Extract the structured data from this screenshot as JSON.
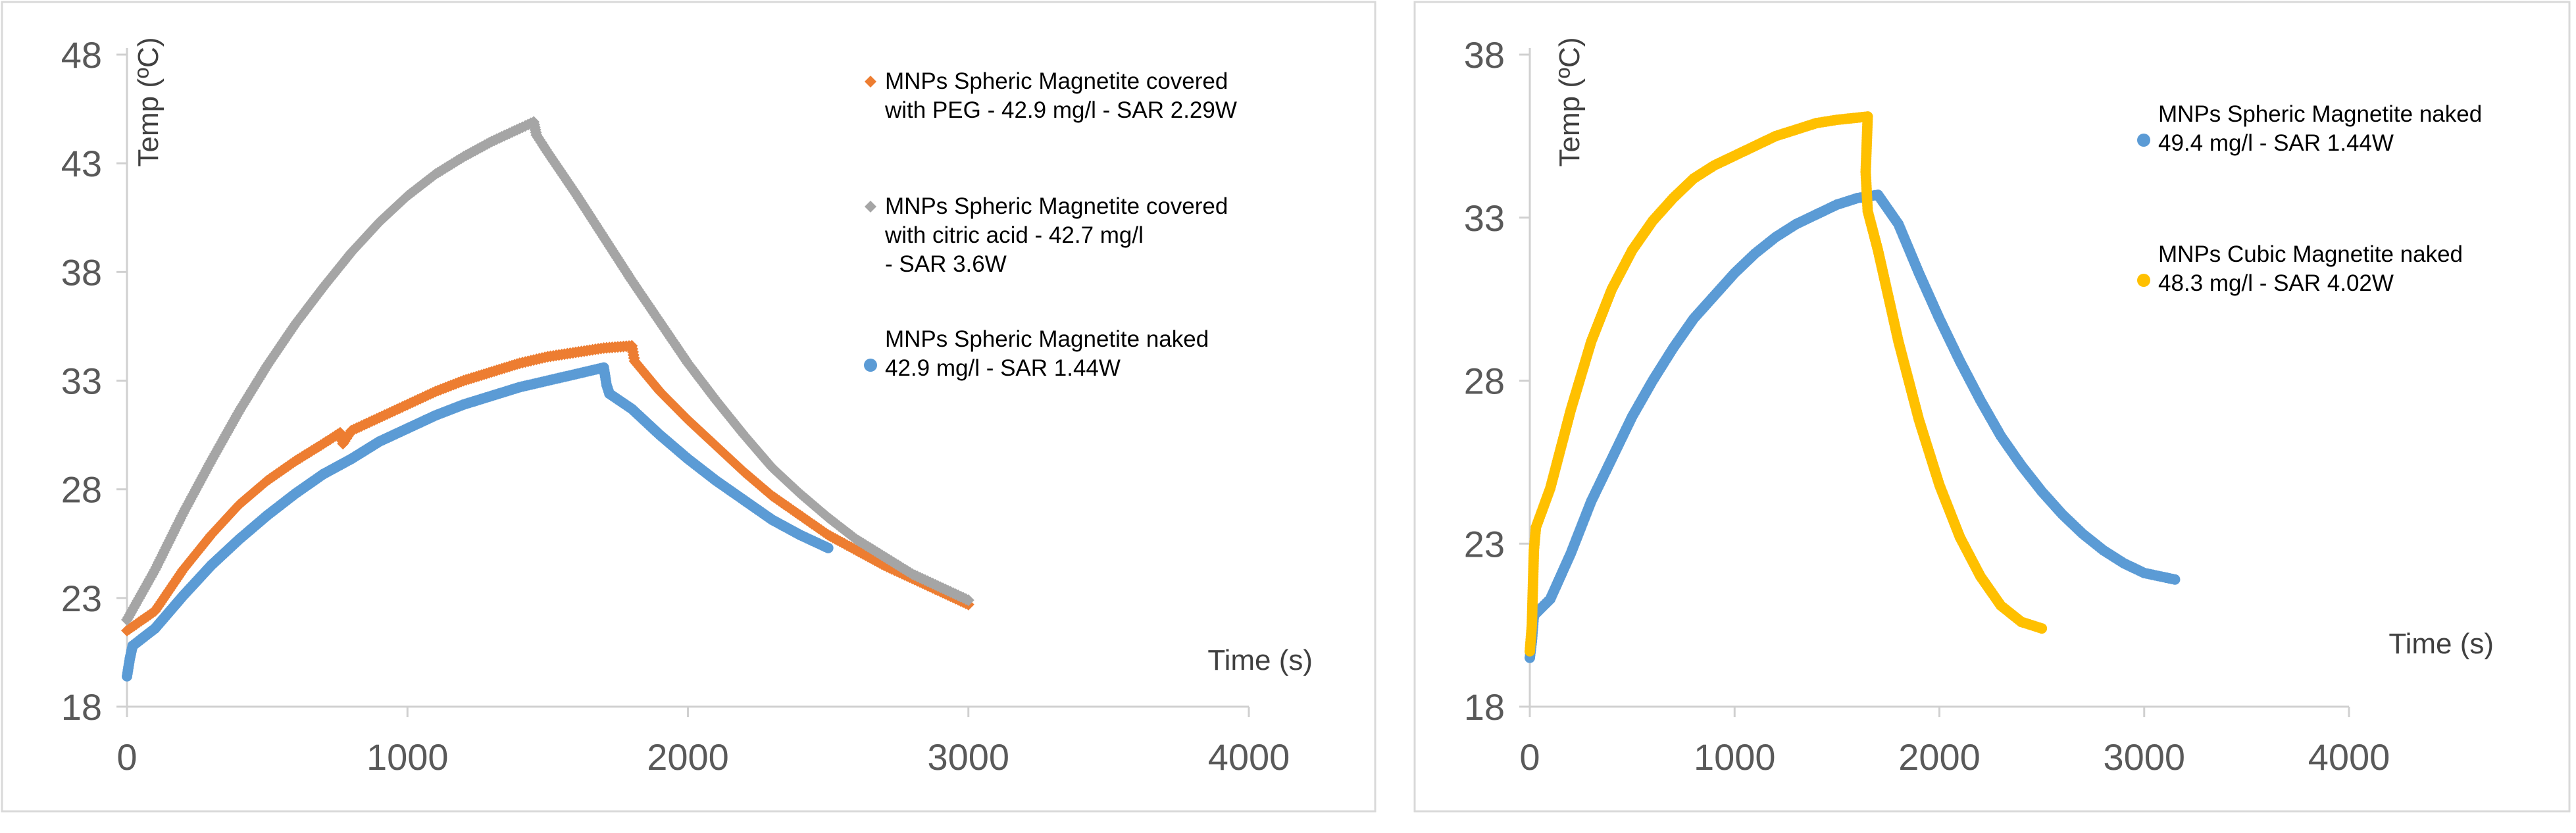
{
  "chart_data": [
    {
      "type": "scatter",
      "title": "",
      "xlabel": "Time (s)",
      "ylabel": "Temp (ºC)",
      "xlim": [
        0,
        4000
      ],
      "ylim": [
        18,
        48
      ],
      "x_ticks": [
        "0",
        "1000",
        "2000",
        "3000",
        "4000"
      ],
      "y_ticks": [
        "18",
        "23",
        "28",
        "33",
        "38",
        "43",
        "48"
      ],
      "legend_position": "top-right",
      "series": [
        {
          "name": "MNPs Spheric Magnetite covered with PEG - 42.9 mg/l - SAR 2.29W",
          "legend_lines": [
            "MNPs Spheric Magnetite covered",
            "with PEG - 42.9 mg/l  - SAR 2.29W"
          ],
          "color": "#ED7D31",
          "marker": "diamond",
          "points": [
            [
              0,
              21.5
            ],
            [
              100,
              22.4
            ],
            [
              200,
              24.3
            ],
            [
              300,
              25.9
            ],
            [
              400,
              27.3
            ],
            [
              500,
              28.4
            ],
            [
              600,
              29.3
            ],
            [
              700,
              30.1
            ],
            [
              760,
              30.6
            ],
            [
              770,
              30.1
            ],
            [
              800,
              30.7
            ],
            [
              900,
              31.3
            ],
            [
              1000,
              31.9
            ],
            [
              1100,
              32.5
            ],
            [
              1200,
              33.0
            ],
            [
              1300,
              33.4
            ],
            [
              1400,
              33.8
            ],
            [
              1500,
              34.1
            ],
            [
              1600,
              34.3
            ],
            [
              1700,
              34.5
            ],
            [
              1800,
              34.6
            ],
            [
              1810,
              33.9
            ],
            [
              1900,
              32.5
            ],
            [
              2000,
              31.2
            ],
            [
              2100,
              30.0
            ],
            [
              2200,
              28.8
            ],
            [
              2300,
              27.7
            ],
            [
              2400,
              26.8
            ],
            [
              2500,
              25.9
            ],
            [
              2600,
              25.2
            ],
            [
              2700,
              24.5
            ],
            [
              2800,
              23.9
            ],
            [
              2900,
              23.3
            ],
            [
              3000,
              22.7
            ]
          ]
        },
        {
          "name": "MNPs Spheric Magnetite covered with citric acid - 42.7 mg/l - SAR 3.6W",
          "legend_lines": [
            "MNPs Spheric Magnetite covered",
            "with citric acid - 42.7 mg/l",
            "- SAR 3.6W"
          ],
          "color": "#A5A5A5",
          "marker": "diamond",
          "points": [
            [
              0,
              22.0
            ],
            [
              100,
              24.3
            ],
            [
              200,
              26.9
            ],
            [
              300,
              29.3
            ],
            [
              400,
              31.6
            ],
            [
              500,
              33.7
            ],
            [
              600,
              35.6
            ],
            [
              700,
              37.3
            ],
            [
              800,
              38.9
            ],
            [
              900,
              40.3
            ],
            [
              1000,
              41.5
            ],
            [
              1100,
              42.5
            ],
            [
              1200,
              43.3
            ],
            [
              1300,
              44.0
            ],
            [
              1400,
              44.6
            ],
            [
              1450,
              44.9
            ],
            [
              1460,
              44.3
            ],
            [
              1500,
              43.5
            ],
            [
              1600,
              41.6
            ],
            [
              1700,
              39.6
            ],
            [
              1800,
              37.6
            ],
            [
              1900,
              35.7
            ],
            [
              2000,
              33.8
            ],
            [
              2100,
              32.1
            ],
            [
              2200,
              30.5
            ],
            [
              2300,
              29.0
            ],
            [
              2400,
              27.8
            ],
            [
              2500,
              26.7
            ],
            [
              2600,
              25.7
            ],
            [
              2700,
              24.9
            ],
            [
              2800,
              24.1
            ],
            [
              2900,
              23.5
            ],
            [
              3000,
              22.9
            ]
          ]
        },
        {
          "name": "MNPs Spheric Magnetite naked 42.9 mg/l - SAR 1.44W",
          "legend_lines": [
            "MNPs Spheric Magnetite naked",
            "42.9 mg/l  - SAR 1.44W"
          ],
          "color": "#5B9BD5",
          "marker": "circle",
          "points": [
            [
              0,
              19.4
            ],
            [
              10,
              20.2
            ],
            [
              20,
              20.8
            ],
            [
              100,
              21.6
            ],
            [
              200,
              23.1
            ],
            [
              300,
              24.5
            ],
            [
              400,
              25.7
            ],
            [
              500,
              26.8
            ],
            [
              600,
              27.8
            ],
            [
              700,
              28.7
            ],
            [
              800,
              29.4
            ],
            [
              900,
              30.2
            ],
            [
              1000,
              30.8
            ],
            [
              1100,
              31.4
            ],
            [
              1200,
              31.9
            ],
            [
              1300,
              32.3
            ],
            [
              1400,
              32.7
            ],
            [
              1500,
              33.0
            ],
            [
              1600,
              33.3
            ],
            [
              1700,
              33.6
            ],
            [
              1710,
              32.8
            ],
            [
              1720,
              32.4
            ],
            [
              1800,
              31.7
            ],
            [
              1900,
              30.5
            ],
            [
              2000,
              29.4
            ],
            [
              2100,
              28.4
            ],
            [
              2200,
              27.5
            ],
            [
              2300,
              26.6
            ],
            [
              2400,
              25.9
            ],
            [
              2500,
              25.3
            ]
          ]
        }
      ]
    },
    {
      "type": "scatter",
      "title": "",
      "xlabel": "Time (s)",
      "ylabel": "Temp (ºC)",
      "xlim": [
        0,
        4000
      ],
      "ylim": [
        18,
        38
      ],
      "x_ticks": [
        "0",
        "1000",
        "2000",
        "3000",
        "4000"
      ],
      "y_ticks": [
        "18",
        "23",
        "28",
        "33",
        "38"
      ],
      "legend_position": "top-right",
      "series": [
        {
          "name": "MNPs Spheric Magnetite naked 49.4 mg/l - SAR 1.44W",
          "legend_lines": [
            "MNPs Spheric Magnetite naked",
            "49.4 mg/l  - SAR 1.44W"
          ],
          "color": "#5B9BD5",
          "marker": "circle",
          "points": [
            [
              0,
              19.5
            ],
            [
              10,
              20.0
            ],
            [
              20,
              20.8
            ],
            [
              100,
              21.3
            ],
            [
              200,
              22.7
            ],
            [
              300,
              24.3
            ],
            [
              400,
              25.6
            ],
            [
              500,
              26.9
            ],
            [
              600,
              28.0
            ],
            [
              700,
              29.0
            ],
            [
              800,
              29.9
            ],
            [
              900,
              30.6
            ],
            [
              1000,
              31.3
            ],
            [
              1100,
              31.9
            ],
            [
              1200,
              32.4
            ],
            [
              1300,
              32.8
            ],
            [
              1400,
              33.1
            ],
            [
              1500,
              33.4
            ],
            [
              1600,
              33.6
            ],
            [
              1700,
              33.7
            ],
            [
              1800,
              32.8
            ],
            [
              1900,
              31.3
            ],
            [
              2000,
              29.9
            ],
            [
              2100,
              28.6
            ],
            [
              2200,
              27.4
            ],
            [
              2300,
              26.3
            ],
            [
              2400,
              25.4
            ],
            [
              2500,
              24.6
            ],
            [
              2600,
              23.9
            ],
            [
              2700,
              23.3
            ],
            [
              2800,
              22.8
            ],
            [
              2900,
              22.4
            ],
            [
              3000,
              22.1
            ],
            [
              3150,
              21.9
            ]
          ]
        },
        {
          "name": "MNPs Cubic Magnetite naked 48.3 mg/l - SAR 4.02W",
          "legend_lines": [
            "MNPs Cubic Magnetite naked",
            "48.3 mg/l  - SAR 4.02W"
          ],
          "color": "#FFC000",
          "marker": "circle",
          "points": [
            [
              0,
              19.7
            ],
            [
              10,
              20.5
            ],
            [
              20,
              22.8
            ],
            [
              30,
              23.5
            ],
            [
              100,
              24.7
            ],
            [
              200,
              27.1
            ],
            [
              300,
              29.2
            ],
            [
              400,
              30.8
            ],
            [
              500,
              32.0
            ],
            [
              600,
              32.9
            ],
            [
              700,
              33.6
            ],
            [
              800,
              34.2
            ],
            [
              900,
              34.6
            ],
            [
              1000,
              34.9
            ],
            [
              1100,
              35.2
            ],
            [
              1200,
              35.5
            ],
            [
              1300,
              35.7
            ],
            [
              1400,
              35.9
            ],
            [
              1500,
              36.0
            ],
            [
              1650,
              36.1
            ],
            [
              1640,
              34.4
            ],
            [
              1650,
              33.2
            ],
            [
              1700,
              32.0
            ],
            [
              1800,
              29.2
            ],
            [
              1900,
              26.8
            ],
            [
              2000,
              24.8
            ],
            [
              2100,
              23.2
            ],
            [
              2200,
              22.0
            ],
            [
              2300,
              21.1
            ],
            [
              2400,
              20.6
            ],
            [
              2500,
              20.4
            ]
          ]
        }
      ]
    }
  ]
}
